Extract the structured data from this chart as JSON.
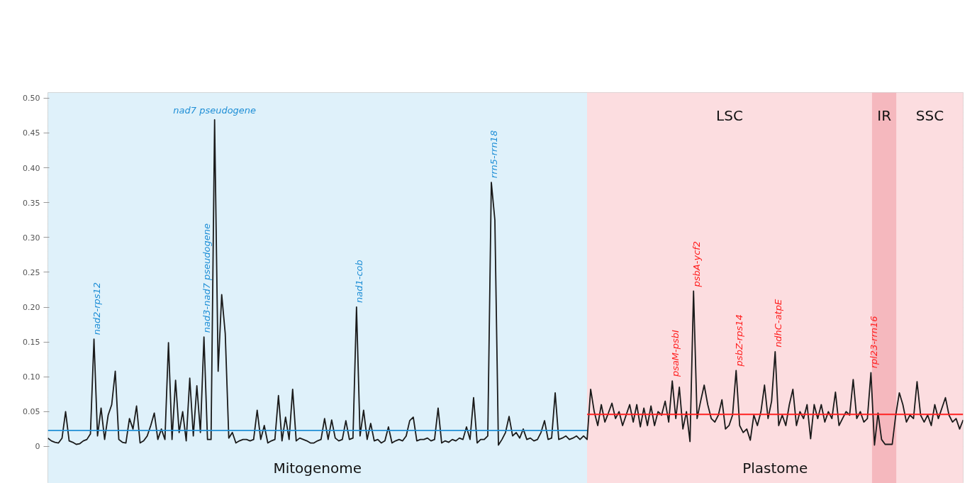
{
  "chart_data": {
    "type": "line",
    "ylim": [
      -0.053,
      0.508
    ],
    "yticks": [
      {
        "value": 0,
        "label": "0"
      },
      {
        "value": 0.05,
        "label": "0.05"
      },
      {
        "value": 0.1,
        "label": "0.10"
      },
      {
        "value": 0.15,
        "label": "0.15"
      },
      {
        "value": 0.2,
        "label": "0.20"
      },
      {
        "value": 0.25,
        "label": "0.25"
      },
      {
        "value": 0.3,
        "label": "0.30"
      },
      {
        "value": 0.35,
        "label": "0.35"
      },
      {
        "value": 0.4,
        "label": "0.40"
      },
      {
        "value": 0.45,
        "label": "0.45"
      },
      {
        "value": 0.5,
        "label": "0.50"
      }
    ],
    "grid": "y",
    "tick_labels": "y",
    "categories": [
      null,
      null,
      null,
      null,
      null,
      null,
      null,
      null,
      null,
      null,
      null,
      null,
      null,
      null,
      null,
      null,
      null,
      null,
      null,
      null,
      null,
      null,
      null,
      null,
      null,
      null,
      null,
      null,
      null,
      null,
      null,
      null,
      null,
      null,
      null,
      null,
      null,
      null,
      null,
      null,
      null,
      null,
      null,
      null,
      null,
      null,
      null,
      null,
      null,
      null,
      null,
      null,
      null,
      null,
      null,
      null,
      null,
      null,
      null,
      null,
      null,
      null,
      null,
      null,
      null,
      null,
      null,
      null,
      null,
      null,
      null,
      null,
      null,
      null,
      null,
      null,
      null,
      null,
      null,
      null,
      null,
      null,
      null,
      null,
      null,
      null,
      null,
      null,
      null,
      null,
      null,
      null,
      null,
      null,
      null,
      null,
      null,
      null,
      null,
      null,
      null,
      null,
      null,
      null,
      null,
      null,
      null,
      null,
      null,
      null,
      null,
      null,
      null,
      null,
      null,
      null,
      null,
      null,
      null,
      null,
      null,
      null,
      null,
      null,
      null,
      null,
      null,
      null,
      null,
      null,
      null,
      null,
      null,
      null,
      null,
      null,
      null,
      null,
      null,
      null,
      null,
      null,
      null,
      null,
      null,
      null,
      null,
      null,
      null,
      null,
      null,
      null,
      null,
      null,
      null,
      null,
      null,
      null,
      null,
      null,
      null,
      null,
      null,
      null,
      null,
      null,
      null,
      null,
      null,
      null,
      null,
      null,
      null,
      null,
      null,
      null,
      null,
      null,
      null,
      null,
      null,
      null,
      null,
      null,
      null,
      null,
      null,
      null,
      null,
      null,
      null,
      null,
      null,
      null,
      null,
      null,
      null,
      null,
      null,
      null,
      null,
      null,
      null,
      null,
      null,
      null,
      null,
      null,
      null,
      null,
      null,
      null,
      null,
      null,
      null,
      null,
      null,
      null,
      null,
      null,
      null,
      null,
      null,
      null,
      null,
      null,
      null,
      null,
      null,
      null,
      null,
      null,
      null,
      null,
      null,
      null,
      null,
      null,
      null,
      null,
      null,
      null,
      null,
      null,
      null,
      null,
      null,
      null,
      null,
      null,
      null,
      null,
      null,
      null,
      null,
      null,
      null,
      null,
      null
    ],
    "series": [
      {
        "color": "#1a1a1a",
        "values": [
          0.012,
          0.008,
          0.006,
          0.005,
          0.012,
          0.05,
          0.008,
          0.006,
          0.003,
          0.004,
          0.008,
          0.01,
          0.018,
          0.154,
          0.015,
          0.055,
          0.01,
          0.045,
          0.06,
          0.108,
          0.01,
          0.006,
          0.005,
          0.04,
          0.025,
          0.058,
          0.005,
          0.008,
          0.015,
          0.03,
          0.048,
          0.01,
          0.025,
          0.01,
          0.149,
          0.01,
          0.095,
          0.02,
          0.05,
          0.008,
          0.098,
          0.015,
          0.087,
          0.02,
          0.157,
          0.01,
          0.01,
          0.469,
          0.108,
          0.218,
          0.162,
          0.012,
          0.02,
          0.005,
          0.008,
          0.01,
          0.01,
          0.008,
          0.01,
          0.052,
          0.01,
          0.03,
          0.005,
          0.008,
          0.01,
          0.073,
          0.008,
          0.042,
          0.01,
          0.082,
          0.008,
          0.012,
          0.01,
          0.008,
          0.005,
          0.005,
          0.008,
          0.01,
          0.04,
          0.01,
          0.038,
          0.012,
          0.008,
          0.01,
          0.037,
          0.01,
          0.012,
          0.2,
          0.015,
          0.052,
          0.01,
          0.033,
          0.008,
          0.01,
          0.005,
          0.008,
          0.028,
          0.005,
          0.008,
          0.01,
          0.008,
          0.015,
          0.037,
          0.042,
          0.008,
          0.01,
          0.01,
          0.012,
          0.008,
          0.01,
          0.055,
          0.005,
          0.008,
          0.006,
          0.01,
          0.008,
          0.012,
          0.01,
          0.028,
          0.01,
          0.07,
          0.005,
          0.01,
          0.01,
          0.015,
          0.379,
          0.325,
          0.002,
          0.01,
          0.02,
          0.043,
          0.015,
          0.02,
          0.012,
          0.025,
          0.01,
          0.012,
          0.008,
          0.01,
          0.02,
          0.037,
          0.01,
          0.012,
          0.077,
          0.01,
          0.012,
          0.015,
          0.01,
          0.012,
          0.015,
          0.01,
          0.015,
          0.01,
          0.082,
          0.05,
          0.03,
          0.06,
          0.035,
          0.048,
          0.062,
          0.04,
          0.05,
          0.03,
          0.045,
          0.06,
          0.035,
          0.06,
          0.028,
          0.055,
          0.03,
          0.058,
          0.03,
          0.05,
          0.045,
          0.065,
          0.035,
          0.094,
          0.04,
          0.085,
          0.025,
          0.05,
          0.007,
          0.223,
          0.04,
          0.065,
          0.088,
          0.06,
          0.04,
          0.035,
          0.045,
          0.067,
          0.025,
          0.03,
          0.045,
          0.109,
          0.03,
          0.02,
          0.025,
          0.009,
          0.045,
          0.03,
          0.05,
          0.088,
          0.04,
          0.065,
          0.136,
          0.03,
          0.045,
          0.03,
          0.06,
          0.082,
          0.03,
          0.05,
          0.04,
          0.06,
          0.011,
          0.06,
          0.04,
          0.06,
          0.035,
          0.05,
          0.04,
          0.078,
          0.03,
          0.04,
          0.05,
          0.045,
          0.096,
          0.04,
          0.05,
          0.035,
          0.04,
          0.106,
          0.002,
          0.048,
          0.01,
          0.003,
          0.003,
          0.003,
          0.045,
          0.077,
          0.06,
          0.035,
          0.045,
          0.04,
          0.093,
          0.045,
          0.035,
          0.045,
          0.03,
          0.06,
          0.04,
          0.055,
          0.07,
          0.045,
          0.035,
          0.04,
          0.025,
          0.038
        ]
      },
      {
        "color": "#1f8fd6",
        "values": [
          0.023,
          0.023,
          0.023,
          0.023,
          0.023,
          0.023,
          0.023,
          0.023,
          0.023,
          0.023,
          0.023,
          0.023,
          0.023,
          0.023,
          0.023,
          0.023,
          0.023,
          0.023,
          0.023,
          0.023,
          0.023,
          0.023,
          0.023,
          0.023,
          0.023,
          0.023,
          0.023,
          0.023,
          0.023,
          0.023,
          0.023,
          0.023,
          0.023,
          0.023,
          0.023,
          0.023,
          0.023,
          0.023,
          0.023,
          0.023,
          0.023,
          0.023,
          0.023,
          0.023,
          0.023,
          0.023,
          0.023,
          0.023,
          0.023,
          0.023,
          0.023,
          0.023,
          0.023,
          0.023,
          0.023,
          0.023,
          0.023,
          0.023,
          0.023,
          0.023,
          0.023,
          0.023,
          0.023,
          0.023,
          0.023,
          0.023,
          0.023,
          0.023,
          0.023,
          0.023,
          0.023,
          0.023,
          0.023,
          0.023,
          0.023,
          0.023,
          0.023,
          0.023,
          0.023,
          0.023,
          0.023,
          0.023,
          0.023,
          0.023,
          0.023,
          0.023,
          0.023,
          0.023,
          0.023,
          0.023,
          0.023,
          0.023,
          0.023,
          0.023,
          0.023,
          0.023,
          0.023,
          0.023,
          0.023,
          0.023,
          0.023,
          0.023,
          0.023,
          0.023,
          0.023,
          0.023,
          0.023,
          0.023,
          0.023,
          0.023,
          0.023,
          0.023,
          0.023,
          0.023,
          0.023,
          0.023,
          0.023,
          0.023,
          0.023,
          0.023,
          0.023,
          0.023,
          0.023,
          0.023,
          0.023,
          0.023,
          0.023,
          0.023,
          0.023,
          0.023,
          0.023,
          0.023,
          0.023,
          0.023,
          0.023,
          0.023,
          0.023,
          0.023,
          0.023,
          0.023,
          0.023,
          0.023,
          0.023,
          0.023,
          0.023,
          0.023,
          0.023,
          0.023,
          0.023,
          0.023,
          0.023,
          0.023,
          0.023,
          null,
          null,
          null,
          null,
          null,
          null,
          null,
          null,
          null,
          null,
          null,
          null,
          null,
          null,
          null,
          null,
          null,
          null,
          null,
          null,
          null,
          null,
          null,
          null,
          null,
          null,
          null,
          null,
          null,
          null,
          null,
          null,
          null,
          null,
          null,
          null,
          null,
          null,
          null,
          null,
          null,
          null,
          null,
          null,
          null,
          null,
          null,
          null,
          null,
          null,
          null,
          null,
          null,
          null,
          null,
          null,
          null,
          null,
          null,
          null,
          null,
          null,
          null,
          null,
          null,
          null,
          null,
          null,
          null,
          null,
          null,
          null,
          null,
          null,
          null,
          null,
          null,
          null,
          null,
          null,
          null,
          null,
          null,
          null,
          null,
          null,
          null,
          null,
          null,
          null,
          null,
          null,
          null,
          null,
          null,
          null,
          null,
          null,
          null,
          null,
          null,
          null,
          null,
          null,
          null,
          null
        ]
      },
      {
        "color": "#ff2020",
        "values": [
          null,
          null,
          null,
          null,
          null,
          null,
          null,
          null,
          null,
          null,
          null,
          null,
          null,
          null,
          null,
          null,
          null,
          null,
          null,
          null,
          null,
          null,
          null,
          null,
          null,
          null,
          null,
          null,
          null,
          null,
          null,
          null,
          null,
          null,
          null,
          null,
          null,
          null,
          null,
          null,
          null,
          null,
          null,
          null,
          null,
          null,
          null,
          null,
          null,
          null,
          null,
          null,
          null,
          null,
          null,
          null,
          null,
          null,
          null,
          null,
          null,
          null,
          null,
          null,
          null,
          null,
          null,
          null,
          null,
          null,
          null,
          null,
          null,
          null,
          null,
          null,
          null,
          null,
          null,
          null,
          null,
          null,
          null,
          null,
          null,
          null,
          null,
          null,
          null,
          null,
          null,
          null,
          null,
          null,
          null,
          null,
          null,
          null,
          null,
          null,
          null,
          null,
          null,
          null,
          null,
          null,
          null,
          null,
          null,
          null,
          null,
          null,
          null,
          null,
          null,
          null,
          null,
          null,
          null,
          null,
          null,
          null,
          null,
          null,
          null,
          null,
          null,
          null,
          null,
          null,
          null,
          null,
          null,
          null,
          null,
          null,
          null,
          null,
          null,
          null,
          null,
          null,
          null,
          null,
          null,
          null,
          null,
          null,
          null,
          null,
          null,
          null,
          0.046,
          0.046,
          0.046,
          0.046,
          0.046,
          0.046,
          0.046,
          0.046,
          0.046,
          0.046,
          0.046,
          0.046,
          0.046,
          0.046,
          0.046,
          0.046,
          0.046,
          0.046,
          0.046,
          0.046,
          0.046,
          0.046,
          0.046,
          0.046,
          0.046,
          0.046,
          0.046,
          0.046,
          0.046,
          0.046,
          0.046,
          0.046,
          0.046,
          0.046,
          0.046,
          0.046,
          0.046,
          0.046,
          0.046,
          0.046,
          0.046,
          0.046,
          0.046,
          0.046,
          0.046,
          0.046,
          0.046,
          0.046,
          0.046,
          0.046,
          0.046,
          0.046,
          0.046,
          0.046,
          0.046,
          0.046,
          0.046,
          0.046,
          0.046,
          0.046,
          0.046,
          0.046,
          0.046,
          0.046,
          0.046,
          0.046,
          0.046,
          0.046,
          0.046,
          0.046,
          0.046,
          0.046,
          0.046,
          0.046,
          0.046,
          0.046,
          0.046,
          0.046,
          0.046,
          0.046,
          0.046,
          0.046,
          0.046,
          0.046,
          0.046,
          0.046,
          0.046,
          0.046,
          0.046,
          0.046,
          0.046,
          0.046,
          0.046,
          0.046,
          0.046,
          0.046,
          0.046,
          0.046,
          0.046,
          0.046,
          0.046,
          0.046,
          0.046,
          0.046,
          0.046,
          0.046,
          0.046
        ]
      }
    ],
    "annotations": [
      "Mitogenome",
      "Plastome",
      "LSC",
      "IR",
      "SSC",
      {
        "text": "nad2-rps12",
        "y": 0.154
      },
      {
        "text": "nad3-nad7 pseudogene",
        "y": 0.157
      },
      {
        "text": "nad7 pseudogene",
        "y": 0.469
      },
      {
        "text": "nad1-cob",
        "y": 0.2
      },
      {
        "text": "rrn5-rrn18",
        "y": 0.379
      },
      {
        "text": "psaM-psbI",
        "y": 0.094
      },
      {
        "text": "psbA-ycf2",
        "y": 0.223
      },
      {
        "text": "psbZ-rps14",
        "y": 0.109
      },
      {
        "text": "ndhC-atpE",
        "y": 0.136
      },
      {
        "text": "rpl23-rrn16",
        "y": 0.106
      }
    ]
  }
}
